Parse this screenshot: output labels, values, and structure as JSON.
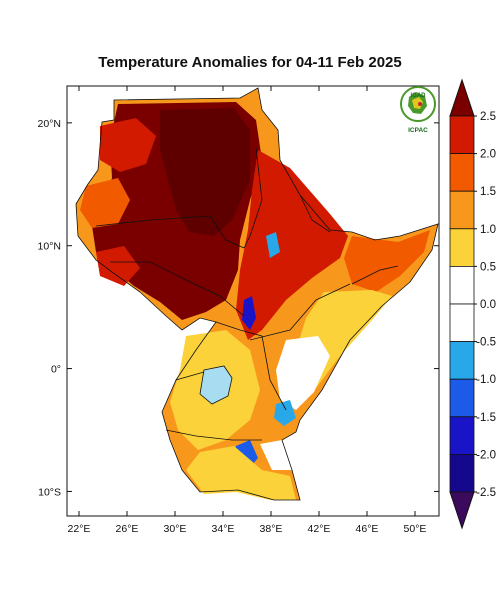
{
  "title": "Temperature Anomalies for 04-11 Feb 2025",
  "map": {
    "lon_range": [
      21,
      52
    ],
    "lat_range": [
      -12,
      23
    ],
    "x_ticks": [
      {
        "lon": 22,
        "label": "22°E"
      },
      {
        "lon": 26,
        "label": "26°E"
      },
      {
        "lon": 30,
        "label": "30°E"
      },
      {
        "lon": 34,
        "label": "34°E"
      },
      {
        "lon": 38,
        "label": "38°E"
      },
      {
        "lon": 42,
        "label": "42°E"
      },
      {
        "lon": 46,
        "label": "46°E"
      },
      {
        "lon": 50,
        "label": "50°E"
      }
    ],
    "y_ticks": [
      {
        "lat": 20,
        "label": "20°N"
      },
      {
        "lat": 10,
        "label": "10°N"
      },
      {
        "lat": 0,
        "label": "0°"
      },
      {
        "lat": -10,
        "label": "10°S"
      }
    ]
  },
  "colorbar": {
    "labels": [
      "2.5",
      "2.0",
      "1.5",
      "1.0",
      "0.5",
      "0.0",
      "-0.5",
      "-1.0",
      "-1.5",
      "-2.0",
      "-2.5"
    ],
    "colors": [
      "#7a0000",
      "#d21a00",
      "#f25a00",
      "#f7981c",
      "#fbd23a",
      "#ffffff",
      "#ffffff",
      "#28a8e8",
      "#1c5ae8",
      "#1a14c8",
      "#16088c",
      "#3c0a5c"
    ]
  },
  "logo": {
    "org_top": "IGAD",
    "org_bottom": "ICPAC",
    "colors": {
      "green": "#4a9a2a",
      "gold": "#e2c520",
      "red": "#c8262a"
    }
  }
}
